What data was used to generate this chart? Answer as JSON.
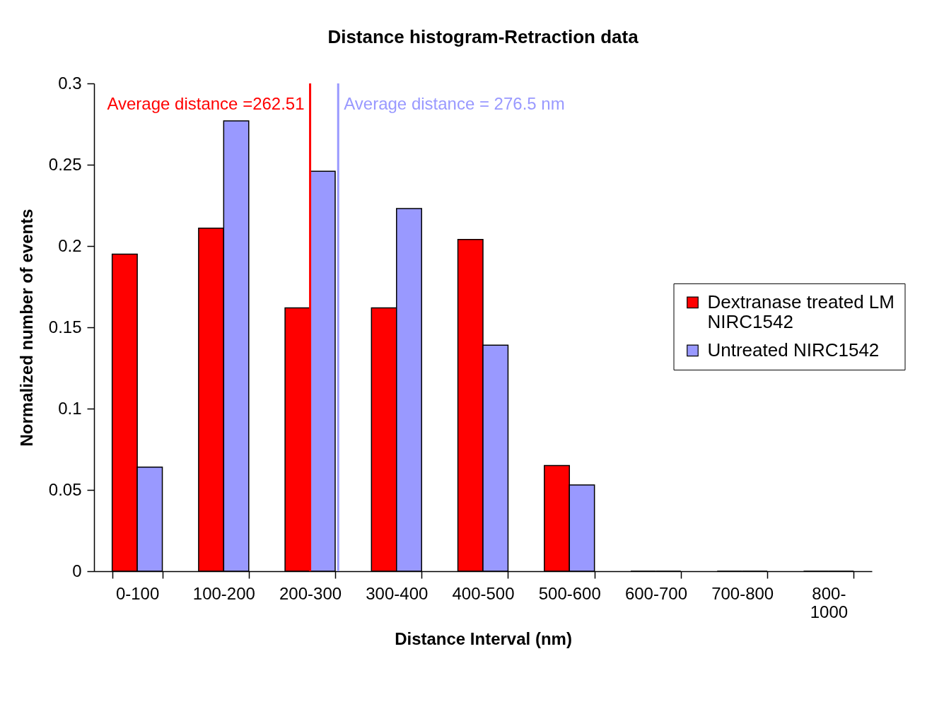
{
  "chart_data": {
    "type": "bar",
    "title": "Distance histogram-Retraction data",
    "xlabel": "Distance Interval (nm)",
    "ylabel": "Normalized number of events",
    "categories": [
      "0-100",
      "100-200",
      "200-300",
      "300-400",
      "400-500",
      "500-600",
      "600-700",
      "700-800",
      "800-1000"
    ],
    "series": [
      {
        "name": "Dextranase treated LM NIRC1542",
        "color": "#ff0000",
        "values": [
          0.195,
          0.211,
          0.162,
          0.162,
          0.204,
          0.065,
          0,
          0,
          0
        ]
      },
      {
        "name": "Untreated NIRC1542",
        "color": "#9999ff",
        "values": [
          0.064,
          0.277,
          0.246,
          0.223,
          0.139,
          0.053,
          0,
          0,
          0
        ]
      }
    ],
    "ylim": [
      0,
      0.3
    ],
    "yticks": [
      0,
      0.05,
      0.1,
      0.15,
      0.2,
      0.25,
      0.3
    ],
    "legend": "right",
    "ref_lines": [
      {
        "axis": "x",
        "value": "200-300",
        "label": "Average distance =262.51",
        "color": "#ff0000"
      },
      {
        "axis": "x",
        "value": "200-300",
        "label": "Average distance = 276.5 nm",
        "color": "#9999ff"
      }
    ]
  }
}
